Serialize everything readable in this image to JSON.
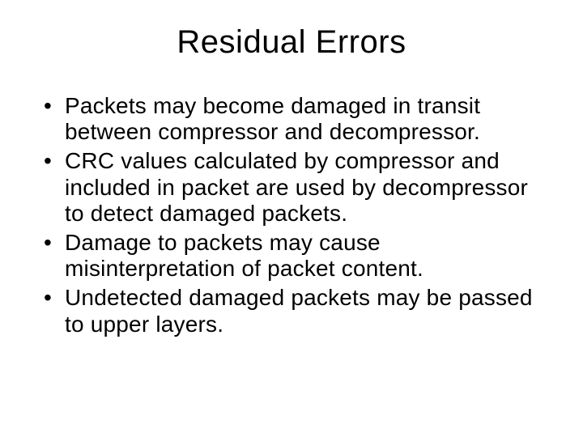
{
  "slide": {
    "title": "Residual Errors",
    "bullets": [
      "Packets may become damaged in transit between compressor and decompressor.",
      "CRC values calculated by compressor and included in packet are used by decompressor to detect damaged packets.",
      "Damage to packets may cause misinterpretation of packet content.",
      "Undetected damaged packets may be passed to upper layers."
    ]
  },
  "style": {
    "background_color": "#ffffff",
    "text_color": "#000000",
    "title_fontsize": 40,
    "body_fontsize": 28,
    "font_family": "Arial"
  }
}
